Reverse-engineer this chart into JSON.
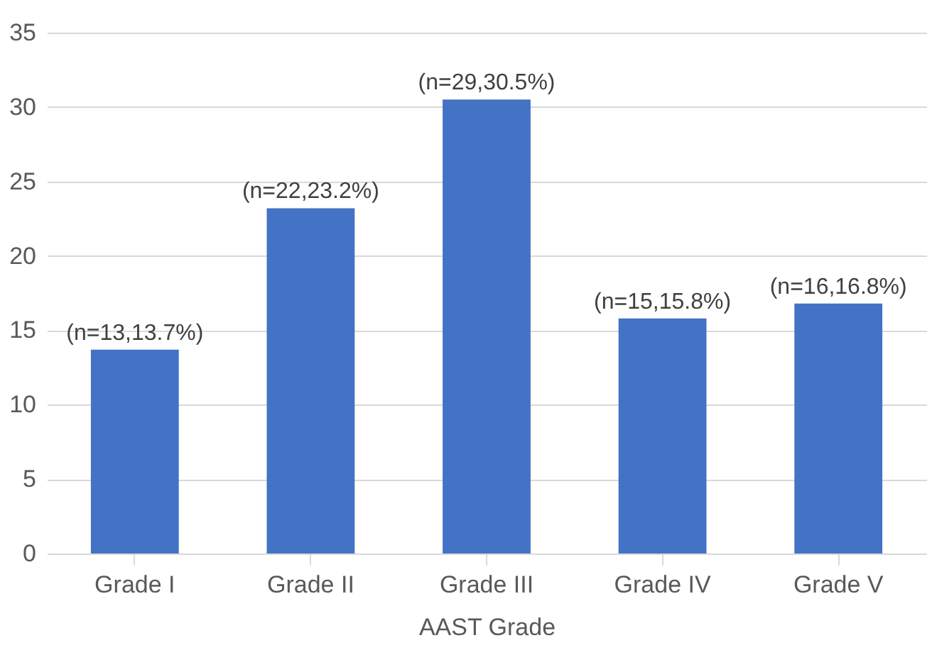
{
  "chart_data": {
    "type": "bar",
    "xlabel": "AAST Grade",
    "categories": [
      "Grade I",
      "Grade II",
      "Grade III",
      "Grade IV",
      "Grade V"
    ],
    "values": [
      13.7,
      23.2,
      30.5,
      15.8,
      16.8
    ],
    "value_labels": [
      "(n=13,13.7%)",
      "(n=22,23.2%)",
      "(n=29,30.5%)",
      "(n=15,15.8%)",
      "(n=16,16.8%)"
    ],
    "color": "#4472c4",
    "ylim": [
      0,
      35
    ],
    "yticks": [
      0,
      5,
      10,
      15,
      20,
      25,
      30,
      35
    ],
    "grid": "y"
  }
}
